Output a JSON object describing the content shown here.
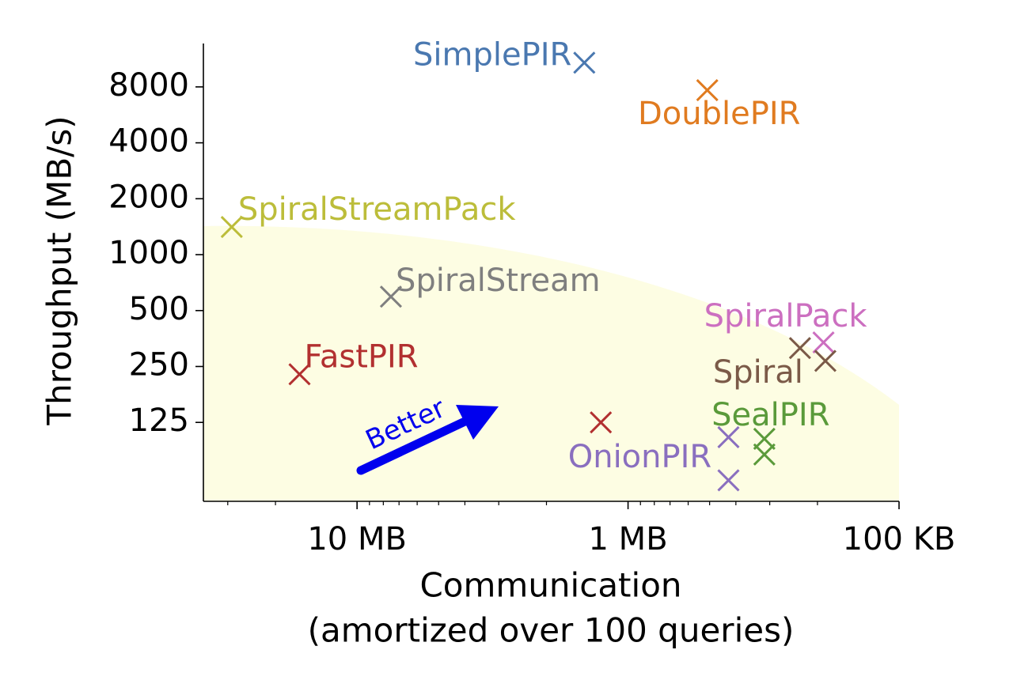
{
  "chart_data": {
    "type": "scatter",
    "ylabel": "Throughput (MB/s)",
    "xlabel": [
      "Communication",
      "(amortized over 100 queries)"
    ],
    "annotation": "Better",
    "xscale": "log",
    "yscale": "log",
    "xlim": [
      36.9,
      0.1
    ],
    "ylim": [
      47,
      13700
    ],
    "xticks": [
      {
        "value": 10,
        "label": "10 MB"
      },
      {
        "value": 1,
        "label": "1 MB"
      },
      {
        "value": 0.1,
        "label": "100 KB"
      }
    ],
    "yticks": [
      125,
      250,
      500,
      1000,
      2000,
      4000,
      8000
    ],
    "series": [
      {
        "name": "SimplePIR",
        "color": "#4a78b0",
        "x": [
          1.45
        ],
        "values": [
          10800
        ]
      },
      {
        "name": "DoublePIR",
        "color": "#e07b20",
        "x": [
          0.51
        ],
        "values": [
          7680
        ]
      },
      {
        "name": "SpiralStreamPack",
        "color": "#bcbd3a",
        "x": [
          29
        ],
        "values": [
          1409
        ]
      },
      {
        "name": "SpiralStream",
        "color": "#7f7f7f",
        "x": [
          7.5
        ],
        "values": [
          594
        ]
      },
      {
        "name": "FastPIR",
        "color": "#b23030",
        "x": [
          16.3,
          1.26
        ],
        "values": [
          227,
          125
        ]
      },
      {
        "name": "SpiralPack",
        "color": "#cc6fc0",
        "x": [
          0.19
        ],
        "values": [
          337
        ]
      },
      {
        "name": "Spiral",
        "color": "#7b5a48",
        "x": [
          0.232,
          0.187
        ],
        "values": [
          314,
          268
        ]
      },
      {
        "name": "SealPIR",
        "color": "#5a9a3a",
        "x": [
          0.314,
          0.314
        ],
        "values": [
          102,
          84
        ]
      },
      {
        "name": "OnionPIR",
        "color": "#8a6fbf",
        "x": [
          0.426,
          0.426
        ],
        "values": [
          104,
          61
        ]
      }
    ]
  }
}
